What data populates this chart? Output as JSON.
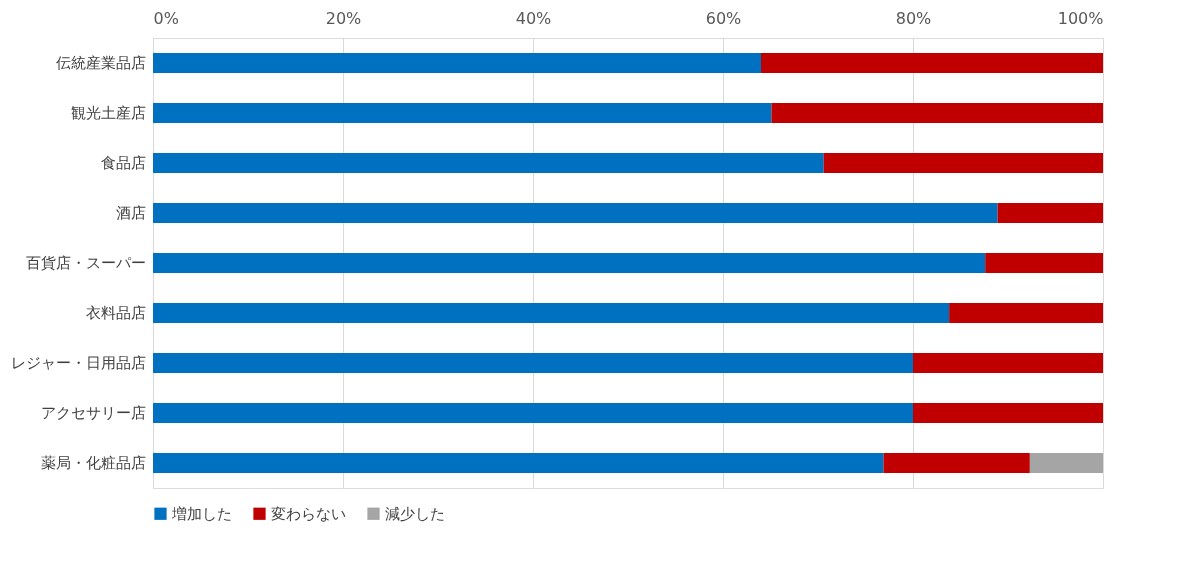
{
  "chart_data": {
    "type": "bar",
    "orientation": "horizontal",
    "stacked": true,
    "categories": [
      "伝統産業品店",
      "観光土産店",
      "食品店",
      "酒店",
      "百貨店・スーパー",
      "衣料品店",
      "レジャー・日用品店",
      "アクセサリー店",
      "薬局・化粧品店"
    ],
    "series": [
      {
        "name": "増加した",
        "color": "#0070c0",
        "values": [
          64.0,
          65.1,
          70.6,
          88.9,
          87.6,
          83.8,
          80.0,
          80.0,
          76.9
        ]
      },
      {
        "name": "変わらない",
        "color": "#c00000",
        "values": [
          36.0,
          34.9,
          29.4,
          11.1,
          12.4,
          16.2,
          20.0,
          20.0,
          15.4
        ]
      },
      {
        "name": "減少した",
        "color": "#a5a5a5",
        "values": [
          0,
          0,
          0,
          0,
          0,
          0,
          0,
          0,
          7.7
        ]
      }
    ],
    "xlim": [
      0,
      100
    ],
    "xticks": [
      {
        "value": 0,
        "label": "0%"
      },
      {
        "value": 20,
        "label": "20%"
      },
      {
        "value": 40,
        "label": "40%"
      },
      {
        "value": 60,
        "label": "60%"
      },
      {
        "value": 80,
        "label": "80%"
      },
      {
        "value": 100,
        "label": "100%"
      }
    ],
    "grid": "x",
    "legend": "bottom"
  }
}
